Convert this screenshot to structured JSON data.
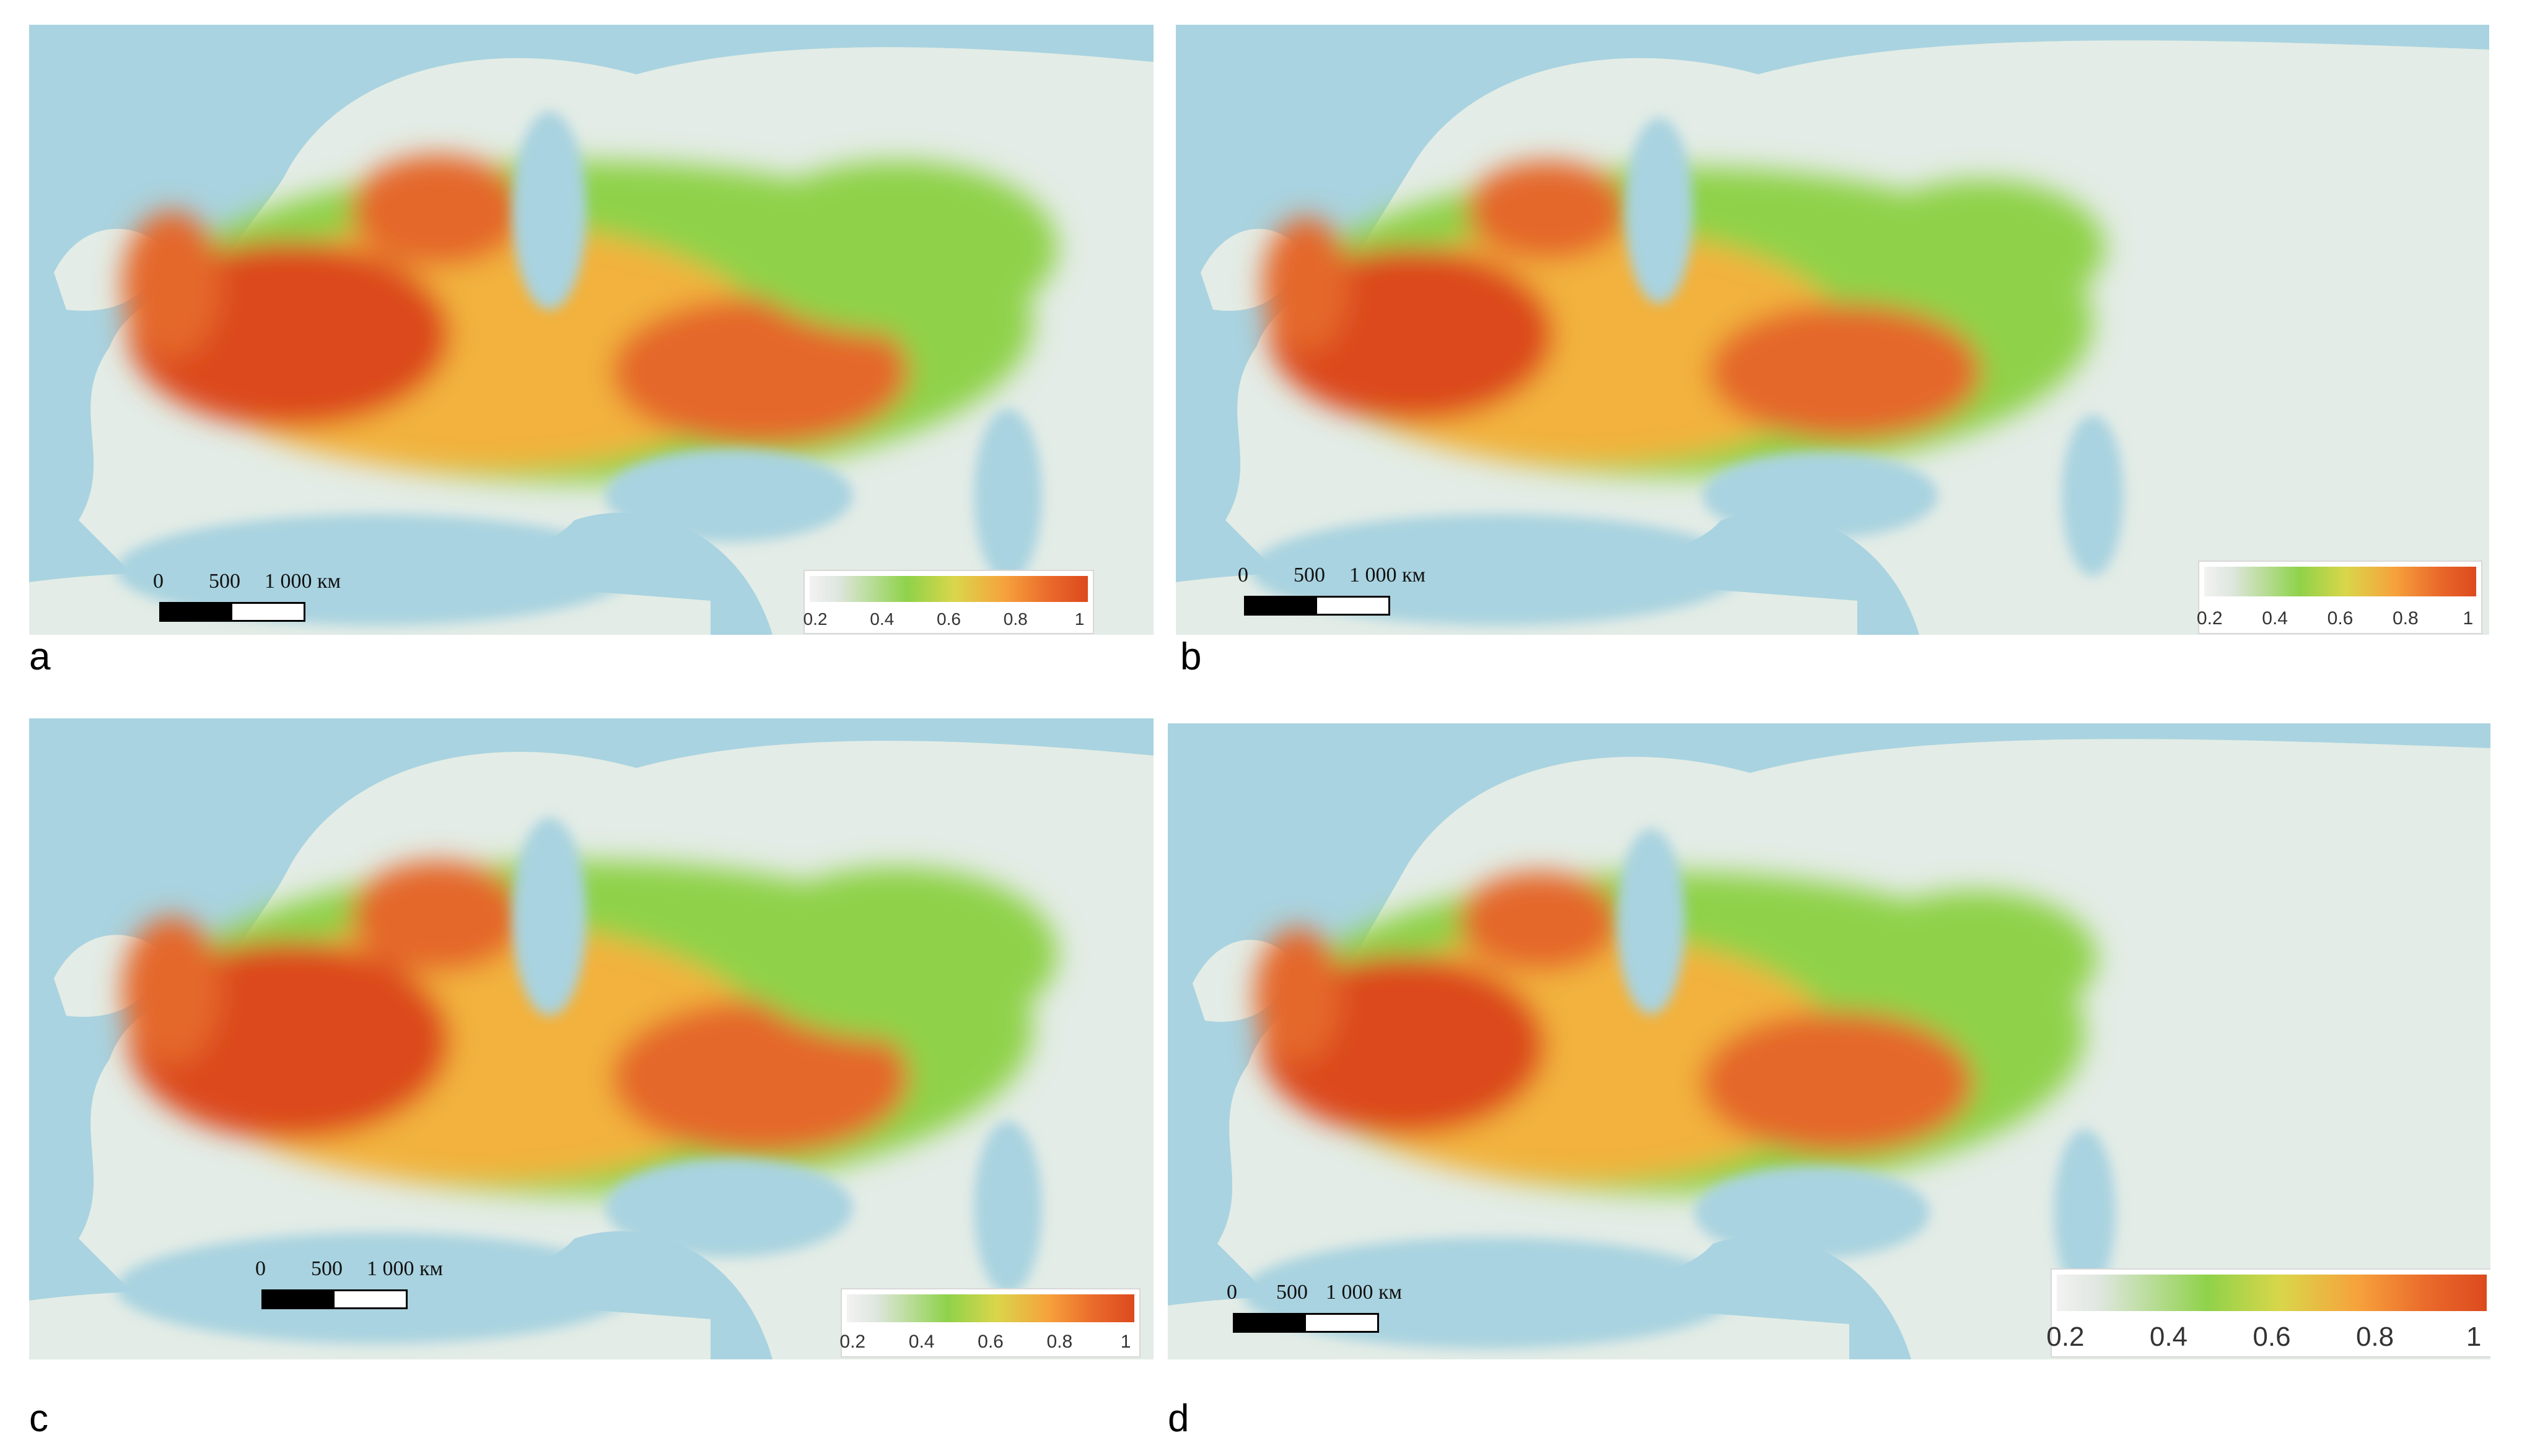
{
  "panels": [
    {
      "letter": "a",
      "scale": {
        "ticks": [
          "0",
          "500",
          "1 000 км"
        ]
      },
      "legend": {
        "ticks": [
          "0.2",
          "0.4",
          "0.6",
          "0.8",
          "1"
        ]
      }
    },
    {
      "letter": "b",
      "scale": {
        "ticks": [
          "0",
          "500",
          "1 000 км"
        ]
      },
      "legend": {
        "ticks": [
          "0.2",
          "0.4",
          "0.6",
          "0.8",
          "1"
        ]
      }
    },
    {
      "letter": "c",
      "scale": {
        "ticks": [
          "0",
          "500",
          "1 000 км"
        ]
      },
      "legend": {
        "ticks": [
          "0.2",
          "0.4",
          "0.6",
          "0.8",
          "1"
        ]
      }
    },
    {
      "letter": "d",
      "scale": {
        "ticks": [
          "0",
          "500",
          "1 000 км"
        ]
      },
      "legend": {
        "ticks": [
          "0.2",
          "0.4",
          "0.6",
          "0.8",
          "1"
        ]
      }
    }
  ],
  "colors": {
    "sea": "#a9d3e0",
    "land": "#e3ece6",
    "low": "#8fd24a",
    "mid": "#f2b23c",
    "high": "#dc4a1e"
  }
}
